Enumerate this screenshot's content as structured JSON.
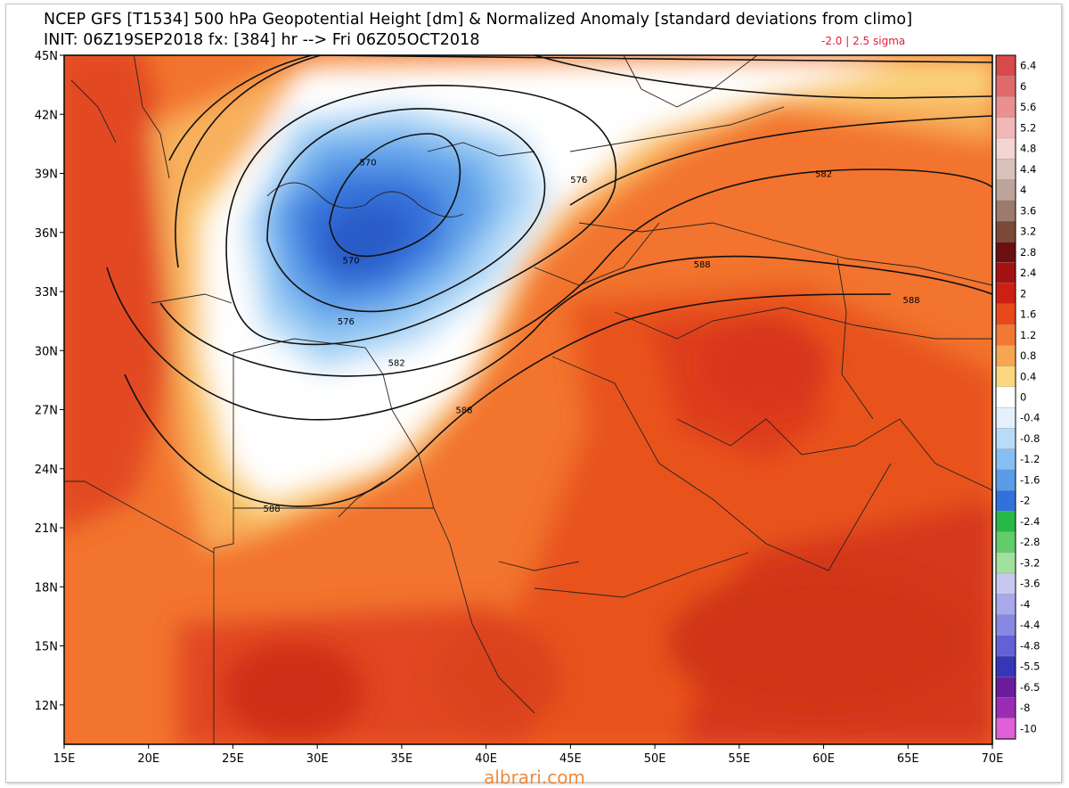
{
  "header": {
    "title_line1": "NCEP GFS [T1534] 500 hPa Geopotential Height [dm] & Normalized Anomaly [standard deviations from climo]",
    "title_line2": "INIT: 06Z19SEP2018 fx: [384] hr --> Fri 06Z05OCT2018",
    "sigma_note": "-2.0 | 2.5 sigma"
  },
  "map": {
    "lon_range": [
      15,
      70
    ],
    "lat_range": [
      10,
      45
    ],
    "lat_ticks": [
      "45N",
      "42N",
      "39N",
      "36N",
      "33N",
      "30N",
      "27N",
      "24N",
      "21N",
      "18N",
      "15N",
      "12N"
    ],
    "lon_ticks": [
      "15E",
      "20E",
      "25E",
      "30E",
      "35E",
      "40E",
      "45E",
      "50E",
      "55E",
      "60E",
      "65E",
      "70E"
    ],
    "contour_labels": [
      {
        "text": "570",
        "lon": 33.0,
        "lat": 39.6
      },
      {
        "text": "570",
        "lon": 32.0,
        "lat": 34.6
      },
      {
        "text": "576",
        "lon": 31.7,
        "lat": 31.5
      },
      {
        "text": "576",
        "lon": 45.5,
        "lat": 38.7
      },
      {
        "text": "582",
        "lon": 34.7,
        "lat": 29.4
      },
      {
        "text": "582",
        "lon": 60.0,
        "lat": 39.0
      },
      {
        "text": "588",
        "lon": 38.7,
        "lat": 27.0
      },
      {
        "text": "588",
        "lon": 27.3,
        "lat": 22.0
      },
      {
        "text": "588",
        "lon": 52.8,
        "lat": 34.4
      },
      {
        "text": "588",
        "lon": 65.2,
        "lat": 32.6
      }
    ]
  },
  "colorbar": {
    "labels": [
      "6.4",
      "6",
      "5.6",
      "5.2",
      "4.8",
      "4.4",
      "4",
      "3.6",
      "3.2",
      "2.8",
      "2.4",
      "2",
      "1.6",
      "1.2",
      "0.8",
      "0.4",
      "0",
      "-0.4",
      "-0.8",
      "-1.2",
      "-1.6",
      "-2",
      "-2.4",
      "-2.8",
      "-3.2",
      "-3.6",
      "-4",
      "-4.4",
      "-4.8",
      "-5.5",
      "-6.5",
      "-8",
      "-10"
    ],
    "colors": [
      "#d84a4a",
      "#e06a6a",
      "#ea9090",
      "#f2b8b8",
      "#f5d4d4",
      "#d8c2bc",
      "#bea49a",
      "#9c7a6c",
      "#7a4a36",
      "#6a1010",
      "#a61212",
      "#cc2014",
      "#e8481a",
      "#f27836",
      "#f6a652",
      "#fbd880",
      "#ffffff",
      "#e4f0fb",
      "#b8dcf7",
      "#86bff2",
      "#5a9ce8",
      "#2f72dc",
      "#28b848",
      "#62cc6a",
      "#a2e09e",
      "#c8c8f0",
      "#a8a8ec",
      "#8888e4",
      "#6262d6",
      "#3636b8",
      "#6a1c9c",
      "#9c2cb4",
      "#e060d8"
    ]
  },
  "watermark": "albrari.com"
}
